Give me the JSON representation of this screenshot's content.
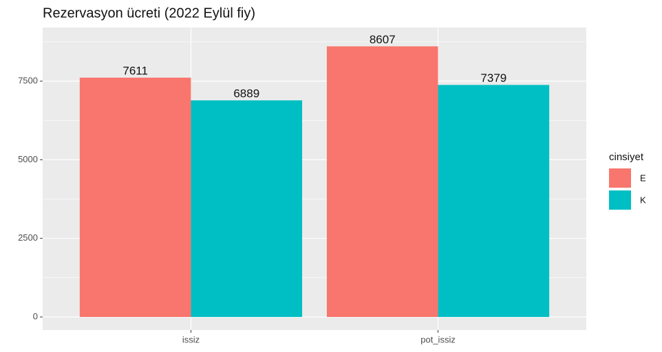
{
  "chart_data": {
    "type": "bar",
    "title": "Rezervasyon ücreti (2022 Eylül fiy)",
    "categories": [
      "issiz",
      "pot_issiz"
    ],
    "series": [
      {
        "name": "E",
        "color": "#F8766D",
        "values": [
          7611,
          8607
        ]
      },
      {
        "name": "K",
        "color": "#00BFC4",
        "values": [
          6889,
          7379
        ]
      }
    ],
    "legend_title": "cinsiyet",
    "legend": "right",
    "ylim": [
      -415,
      9206
    ],
    "yticks": [
      0,
      2500,
      5000,
      7500
    ],
    "y_minor_ticks": [
      1250,
      3750,
      6250,
      8750
    ],
    "grid": true
  }
}
